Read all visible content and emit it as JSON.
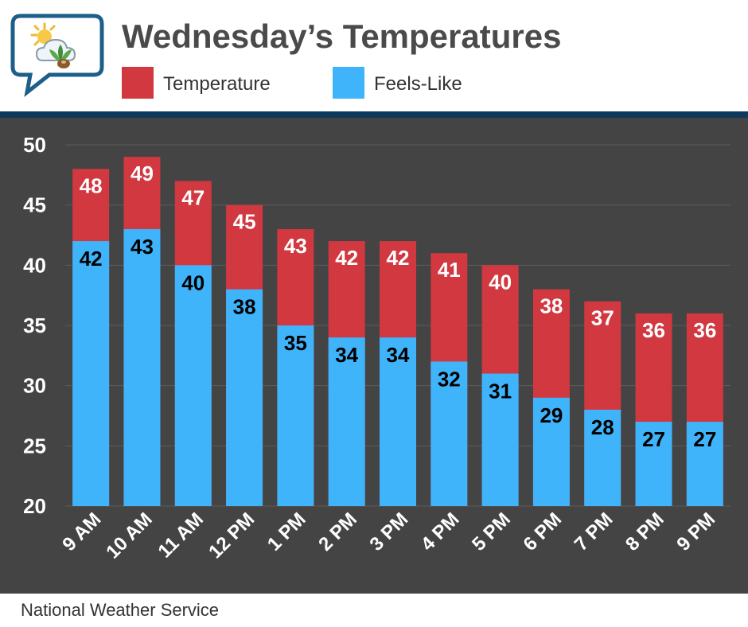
{
  "header": {
    "title": "Wednesday’s Temperatures"
  },
  "legend": [
    {
      "label": "Temperature",
      "color": "#d1383f"
    },
    {
      "label": "Feels-Like",
      "color": "#3fb4fb"
    }
  ],
  "footer": {
    "source": "National Weather Service"
  },
  "colors": {
    "background": "#444444",
    "header_rule": "#0d3a5c",
    "temperature": "#d1383f",
    "feels_like": "#3fb4fb",
    "title": "#4a4a4a"
  },
  "chart_data": {
    "type": "bar",
    "title": "Wednesday’s Temperatures",
    "xlabel": "",
    "ylabel": "",
    "ylim": [
      20,
      50
    ],
    "yticks": [
      20,
      25,
      30,
      35,
      40,
      45,
      50
    ],
    "grid": true,
    "categories": [
      "9 AM",
      "10 AM",
      "11 AM",
      "12 PM",
      "1 PM",
      "2 PM",
      "3 PM",
      "4 PM",
      "5 PM",
      "6 PM",
      "7 PM",
      "8 PM",
      "9 PM"
    ],
    "series": [
      {
        "name": "Temperature",
        "values": [
          48,
          49,
          47,
          45,
          43,
          42,
          42,
          41,
          40,
          38,
          37,
          36,
          36
        ]
      },
      {
        "name": "Feels-Like",
        "values": [
          42,
          43,
          40,
          38,
          35,
          34,
          34,
          32,
          31,
          29,
          28,
          27,
          27
        ]
      }
    ],
    "legend_position": "top"
  }
}
